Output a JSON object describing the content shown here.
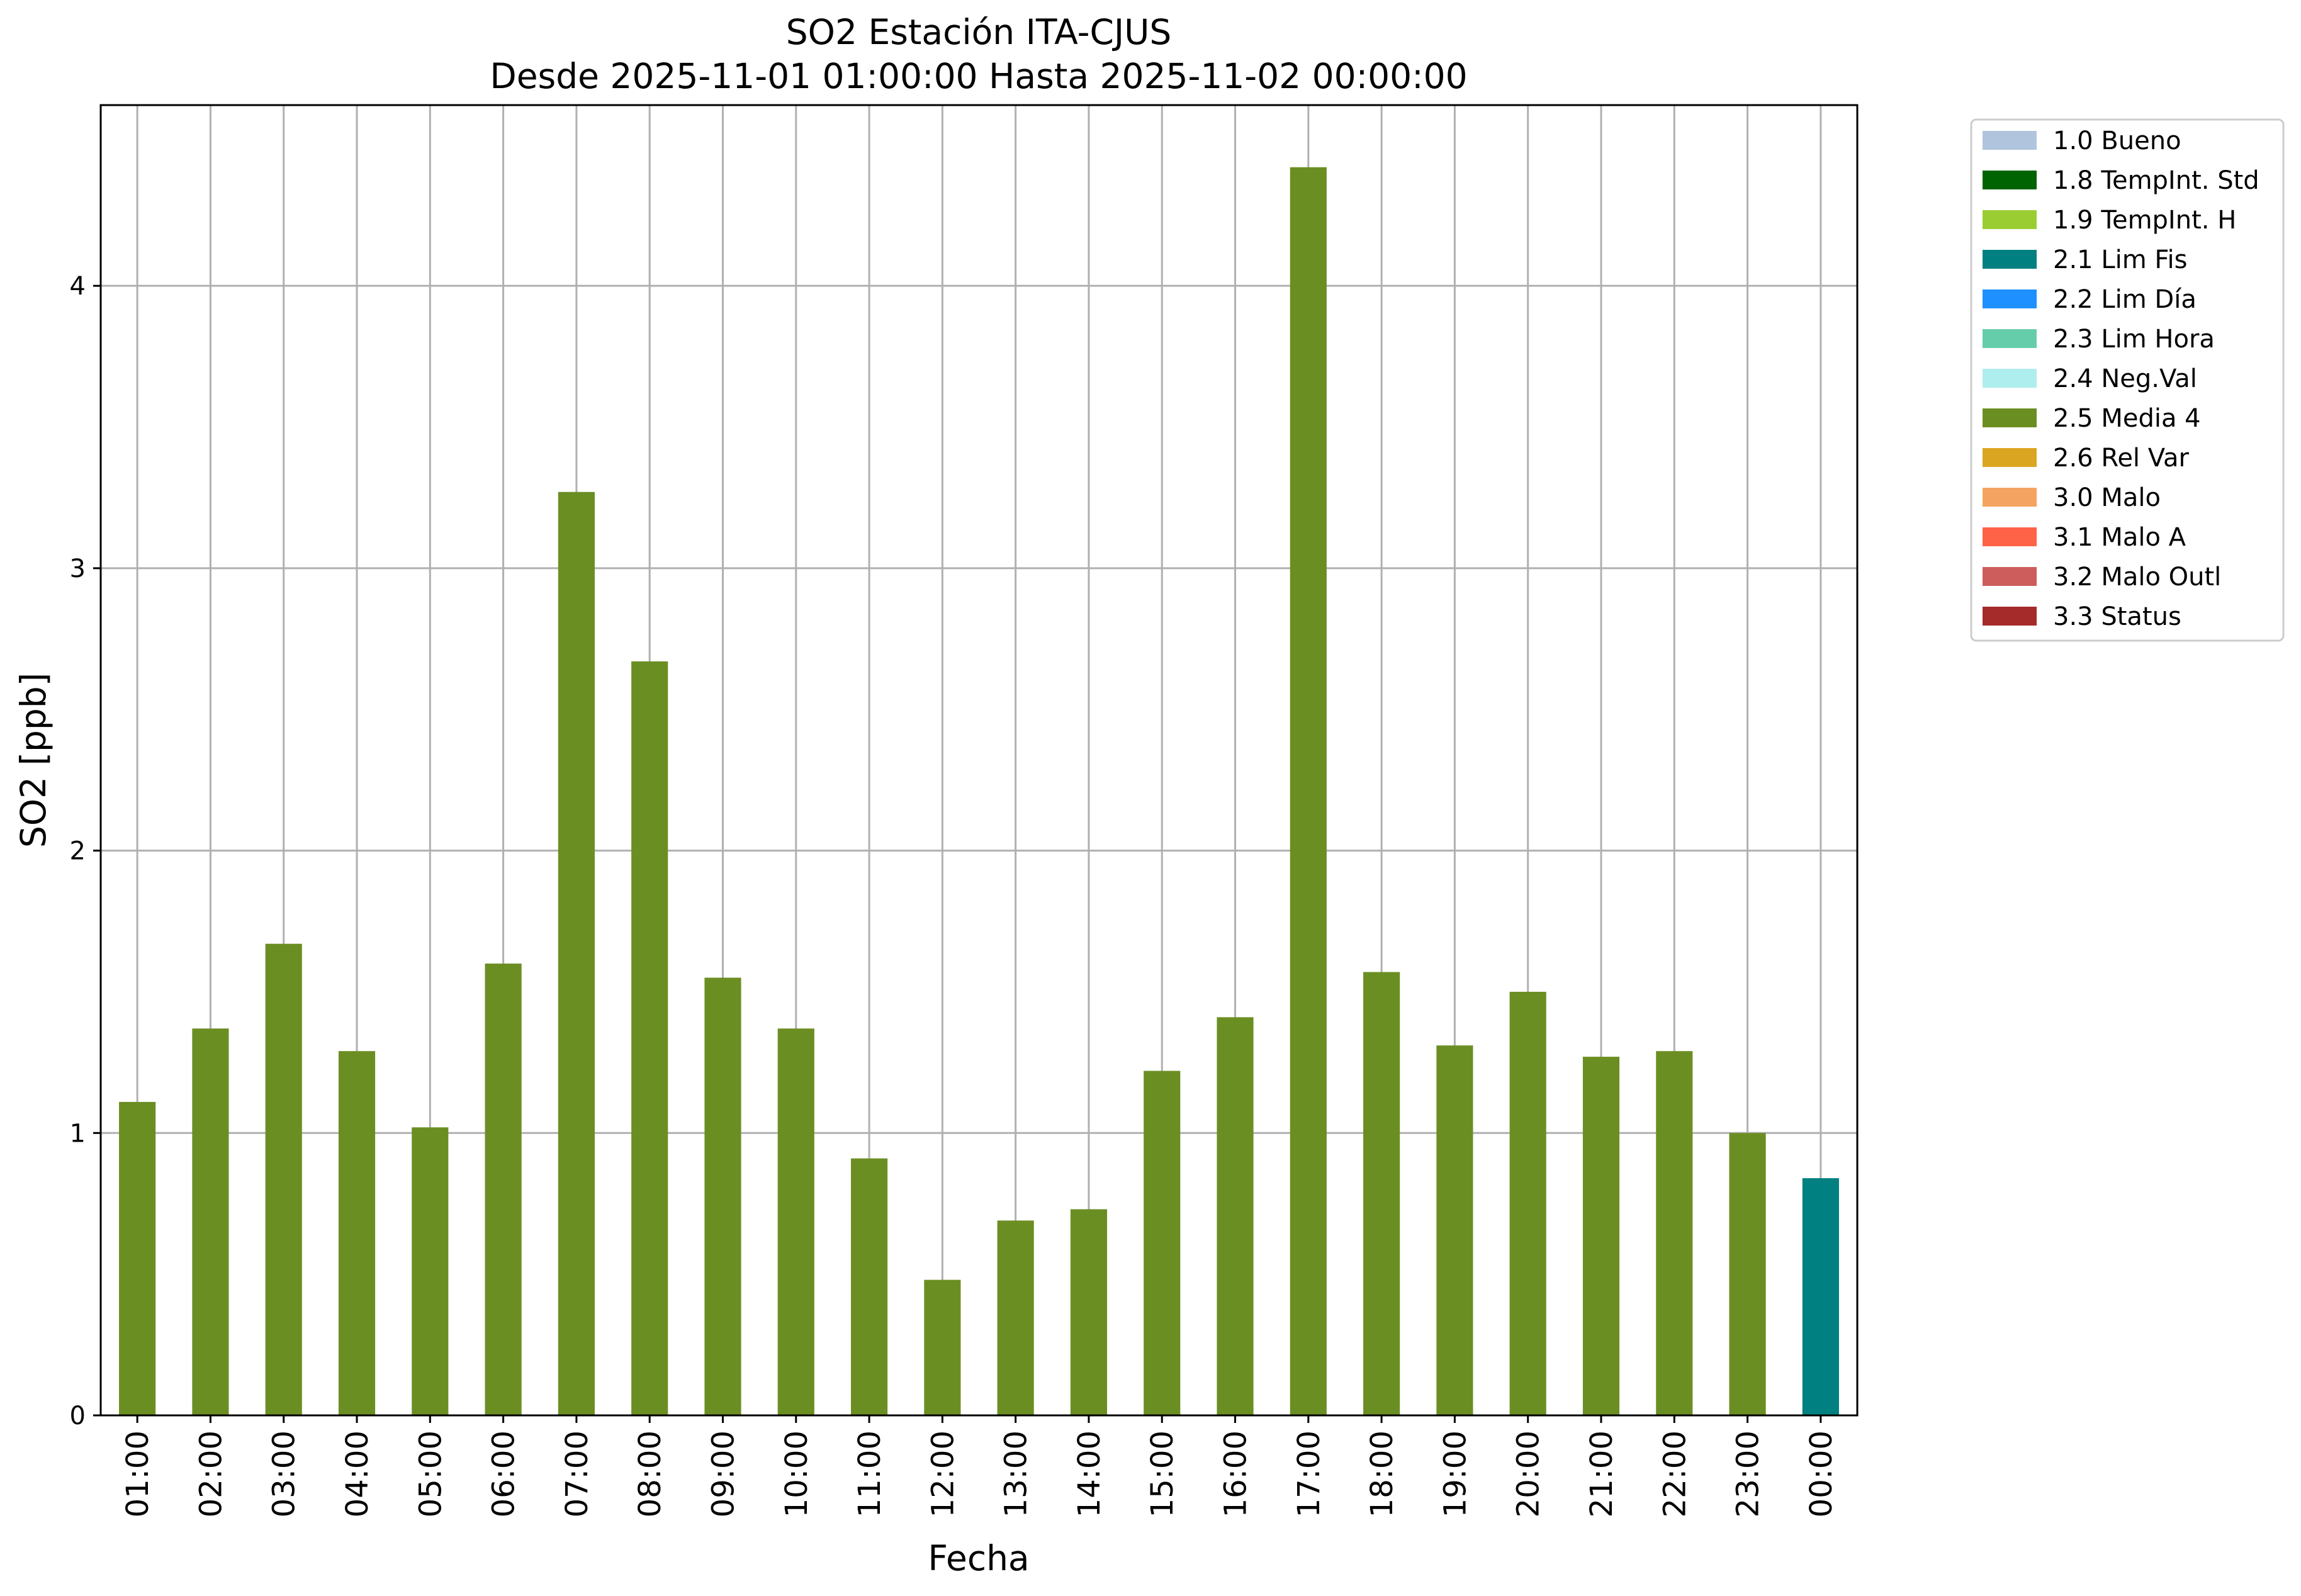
{
  "chart_data": {
    "type": "bar",
    "title": "SO2 Estación ITA-CJUS",
    "subtitle": "Desde 2025-11-01 01:00:00 Hasta 2025-11-02 00:00:00",
    "xlabel": "Fecha",
    "ylabel": "SO2 [ppb]",
    "ylim": [
      0,
      4.64
    ],
    "yticks": [
      "0",
      "1",
      "2",
      "3",
      "4"
    ],
    "grid": true,
    "legend_position": "outside-right",
    "categories": [
      "01:00",
      "02:00",
      "03:00",
      "04:00",
      "05:00",
      "06:00",
      "07:00",
      "08:00",
      "09:00",
      "10:00",
      "11:00",
      "12:00",
      "13:00",
      "14:00",
      "15:00",
      "16:00",
      "17:00",
      "18:00",
      "19:00",
      "20:00",
      "21:00",
      "22:00",
      "23:00",
      "00:00"
    ],
    "values": [
      1.11,
      1.37,
      1.67,
      1.29,
      1.02,
      1.6,
      3.27,
      2.67,
      1.55,
      1.37,
      0.91,
      0.48,
      0.69,
      0.73,
      1.22,
      1.41,
      4.42,
      1.57,
      1.31,
      1.5,
      1.27,
      1.29,
      1.0,
      0.84
    ],
    "flags": [
      "2.5 Media 4",
      "2.5 Media 4",
      "2.5 Media 4",
      "2.5 Media 4",
      "2.5 Media 4",
      "2.5 Media 4",
      "2.5 Media 4",
      "2.5 Media 4",
      "2.5 Media 4",
      "2.5 Media 4",
      "2.5 Media 4",
      "2.5 Media 4",
      "2.5 Media 4",
      "2.5 Media 4",
      "2.5 Media 4",
      "2.5 Media 4",
      "2.5 Media 4",
      "2.5 Media 4",
      "2.5 Media 4",
      "2.5 Media 4",
      "2.5 Media 4",
      "2.5 Media 4",
      "2.5 Media 4",
      "2.1 Lim Fis"
    ],
    "legend": [
      {
        "label": "1.0 Bueno",
        "color": "#b0c4de"
      },
      {
        "label": "1.8 TempInt. Std",
        "color": "#006400"
      },
      {
        "label": "1.9 TempInt. H",
        "color": "#9acd32"
      },
      {
        "label": "2.1 Lim Fis",
        "color": "#008080"
      },
      {
        "label": "2.2 Lim Día",
        "color": "#1e90ff"
      },
      {
        "label": "2.3 Lim Hora",
        "color": "#66cdaa"
      },
      {
        "label": "2.4 Neg.Val",
        "color": "#afeeee"
      },
      {
        "label": "2.5 Media 4",
        "color": "#6b8e23"
      },
      {
        "label": "2.6 Rel Var",
        "color": "#daa520"
      },
      {
        "label": "3.0 Malo",
        "color": "#f4a460"
      },
      {
        "label": "3.1 Malo A",
        "color": "#ff6347"
      },
      {
        "label": "3.2 Malo Outl",
        "color": "#cd5c5c"
      },
      {
        "label": "3.3 Status",
        "color": "#a52a2a"
      }
    ]
  }
}
